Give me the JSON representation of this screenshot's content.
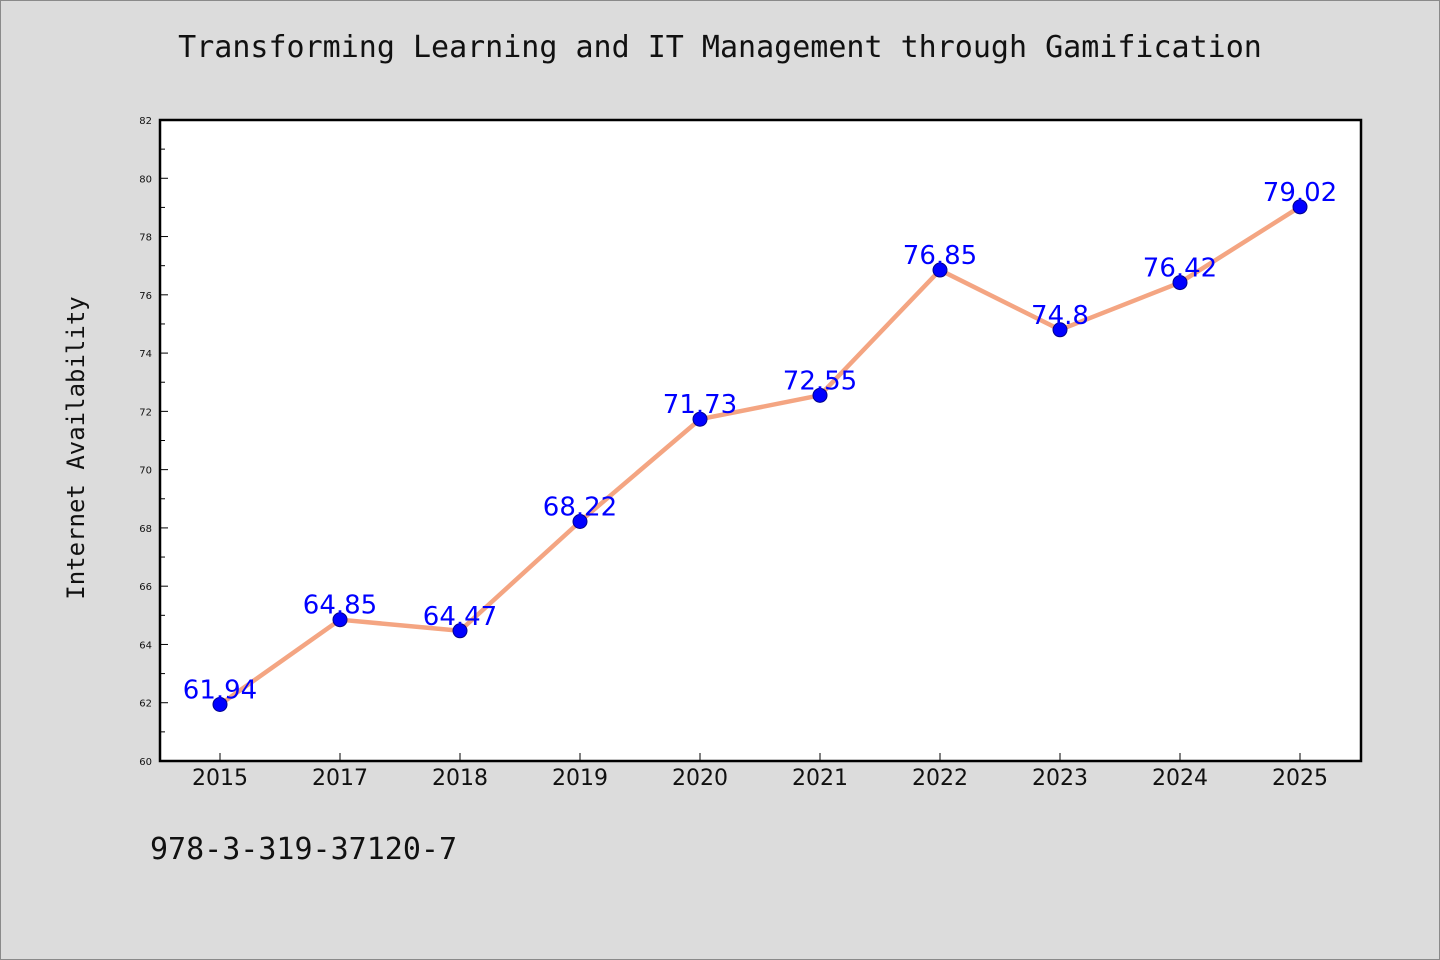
{
  "title": "Transforming Learning and IT Management through Gamification",
  "footer_text": "978-3-319-37120-7",
  "colors": {
    "background": "#dcdcdc",
    "plot_background": "#ffffff",
    "line": "#f4a582",
    "marker": "#0000ff",
    "label": "#0000ff"
  },
  "chart_data": {
    "type": "line",
    "categories": [
      "2015",
      "2017",
      "2018",
      "2019",
      "2020",
      "2021",
      "2022",
      "2023",
      "2024",
      "2025"
    ],
    "series": [
      {
        "values": [
          61.94,
          64.85,
          64.47,
          68.22,
          71.73,
          72.55,
          76.85,
          74.8,
          76.42,
          79.02
        ]
      }
    ],
    "data_labels": [
      "61.94",
      "64.85",
      "64.47",
      "68.22",
      "71.73",
      "72.55",
      "76.85",
      "74.8",
      "76.42",
      "79.02"
    ],
    "xlabel": "",
    "ylabel": "Internet Availability",
    "ylim": [
      60,
      82
    ],
    "yticks": [
      60,
      62,
      64,
      66,
      68,
      70,
      72,
      74,
      76,
      78,
      80,
      82
    ],
    "grid": false,
    "legend": "none"
  }
}
